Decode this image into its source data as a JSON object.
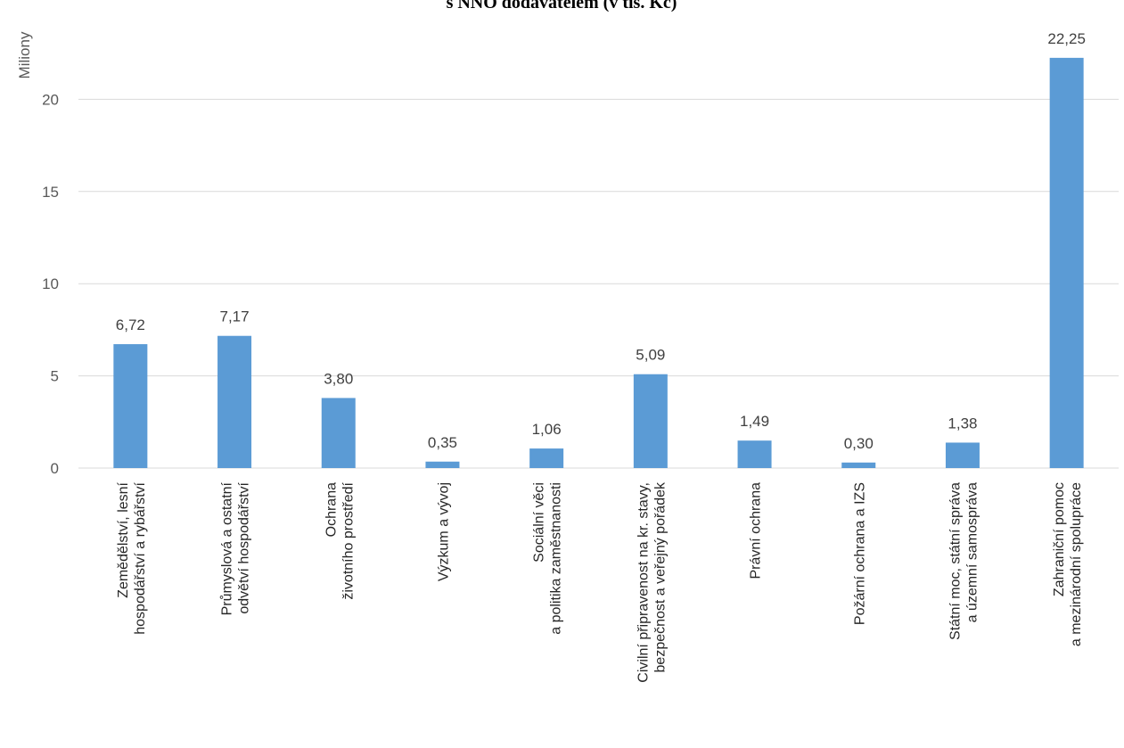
{
  "chart_data": {
    "type": "bar",
    "title": "s NNO dodavatelem (v tis. Kč)",
    "ylabel": "Miliony",
    "xlabel": "",
    "ylim": [
      0,
      25
    ],
    "yticks": [
      0,
      5,
      10,
      15,
      20
    ],
    "ytick_labels": [
      "0",
      "5",
      "10",
      "15",
      "20"
    ],
    "grid": true,
    "bar_color": "#5b9bd5",
    "categories": [
      [
        "Zemědělství, lesní",
        "hospodářství a rybářství"
      ],
      [
        "Průmyslová a ostatní",
        "odvětví hospodářství"
      ],
      [
        "Ochrana",
        "životního prostředí"
      ],
      [
        "Výzkum a vývoj"
      ],
      [
        "Sociální věci",
        "a politika zaměstnanosti"
      ],
      [
        "Civilní připravenost na kr. stavy,",
        "bezpečnost a veřejný pořádek"
      ],
      [
        "Právní ochrana"
      ],
      [
        "Požární ochrana a IZS"
      ],
      [
        "Státní moc, státní správa",
        "a územní samospráva"
      ],
      [
        "Zahraniční pomoc",
        "a mezinárodní spolupráce"
      ]
    ],
    "values": [
      6.72,
      7.17,
      3.8,
      0.35,
      1.06,
      5.09,
      1.49,
      0.3,
      1.38,
      22.25
    ],
    "value_labels": [
      "6,72",
      "7,17",
      "3,80",
      "0,35",
      "1,06",
      "5,09",
      "1,49",
      "0,30",
      "1,38",
      "22,25"
    ]
  }
}
